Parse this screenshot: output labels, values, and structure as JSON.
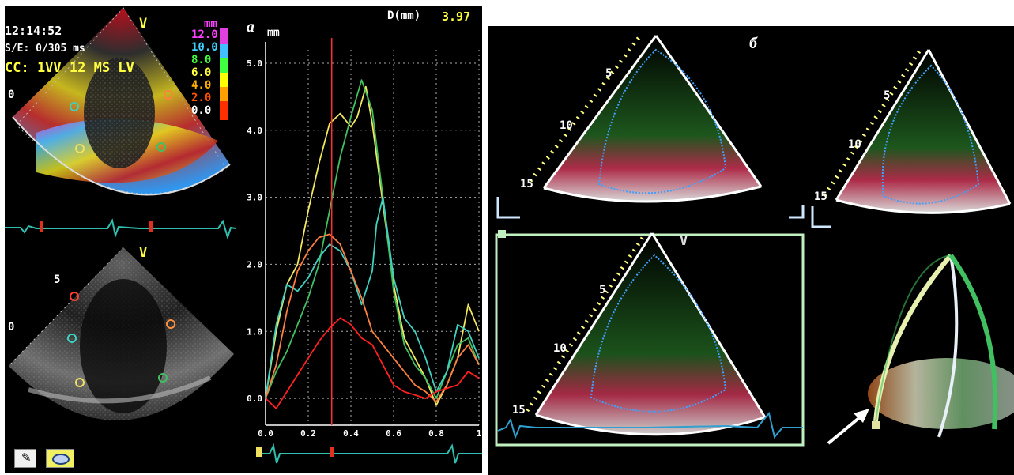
{
  "panel_a": {
    "label": "а",
    "time": "12:14:52",
    "sweep": "S/E: 0/305 ms",
    "mode": "CC: 1VV 12 MS LV",
    "marker_v_top": "V",
    "marker_v_bottom": "V",
    "depth_top": "0",
    "depth_bottom_5": "5",
    "depth_bottom_0": "0",
    "scale_unit": "mm",
    "scale_values": [
      "12.0",
      "10.0",
      "8.0",
      "6.0",
      "4.0",
      "2.0",
      "0.0"
    ],
    "scale_colors": [
      "#e040e0",
      "#40c0ff",
      "#40ff40",
      "#ffff00",
      "#ffa000",
      "#ff3000"
    ],
    "readout_label": "D(mm)",
    "readout_value": "3.97",
    "icons": [
      "pen-icon",
      "ellipse-icon"
    ]
  },
  "panel_b": {
    "label": "б",
    "depth_labels": [
      "5",
      "10",
      "15"
    ],
    "marker_v": "V"
  },
  "chart_data": {
    "type": "line",
    "ylabel": "mm",
    "xlim": [
      0,
      1.0
    ],
    "ylim": [
      -0.4,
      5.2
    ],
    "x_ticks": [
      "0.0",
      "0.2",
      "0.4",
      "0.6",
      "0.8",
      "1"
    ],
    "y_ticks": [
      "0.0",
      "1.0",
      "2.0",
      "3.0",
      "4.0",
      "5.0"
    ],
    "cursor_x": 0.31,
    "grid": true,
    "series": [
      {
        "color": "#f2e860",
        "x": [
          0,
          0.05,
          0.1,
          0.15,
          0.2,
          0.25,
          0.3,
          0.35,
          0.4,
          0.43,
          0.47,
          0.5,
          0.55,
          0.6,
          0.65,
          0.7,
          0.75,
          0.8,
          0.85,
          0.9,
          0.95,
          1.0
        ],
        "y": [
          0,
          1.0,
          1.7,
          2.0,
          2.8,
          3.5,
          4.1,
          4.25,
          4.05,
          4.2,
          4.65,
          4.1,
          2.9,
          1.7,
          0.9,
          0.6,
          0.3,
          -0.1,
          0.2,
          0.6,
          1.4,
          1.0
        ]
      },
      {
        "color": "#40c060",
        "x": [
          0,
          0.05,
          0.1,
          0.15,
          0.2,
          0.25,
          0.3,
          0.35,
          0.4,
          0.45,
          0.5,
          0.55,
          0.6,
          0.65,
          0.7,
          0.75,
          0.8,
          0.85,
          0.9,
          0.95,
          1.0
        ],
        "y": [
          0,
          0.4,
          0.7,
          1.1,
          1.5,
          2.0,
          2.8,
          3.6,
          4.2,
          4.75,
          4.3,
          3.0,
          1.6,
          0.8,
          0.5,
          0.3,
          0.0,
          0.4,
          0.8,
          0.9,
          0.5
        ]
      },
      {
        "color": "#40d0c0",
        "x": [
          0,
          0.05,
          0.1,
          0.15,
          0.2,
          0.25,
          0.3,
          0.35,
          0.4,
          0.45,
          0.5,
          0.52,
          0.55,
          0.6,
          0.65,
          0.7,
          0.75,
          0.8,
          0.85,
          0.9,
          0.95,
          1.0
        ],
        "y": [
          0,
          1.1,
          1.7,
          1.6,
          1.8,
          2.1,
          2.3,
          2.2,
          1.9,
          1.4,
          1.9,
          2.6,
          3.0,
          1.8,
          1.2,
          1.0,
          0.6,
          0.1,
          0.4,
          1.1,
          1.0,
          0.6
        ]
      },
      {
        "color": "#ff8040",
        "x": [
          0,
          0.05,
          0.1,
          0.15,
          0.2,
          0.25,
          0.3,
          0.35,
          0.4,
          0.45,
          0.5,
          0.55,
          0.6,
          0.65,
          0.7,
          0.75,
          0.8,
          0.85,
          0.9,
          0.95,
          1.0
        ],
        "y": [
          0,
          0.5,
          1.3,
          1.9,
          2.2,
          2.4,
          2.45,
          2.3,
          1.9,
          1.5,
          1.0,
          0.8,
          0.6,
          0.4,
          0.2,
          0.1,
          -0.05,
          0.2,
          0.6,
          0.8,
          0.5
        ]
      },
      {
        "color": "#ff2020",
        "x": [
          0,
          0.05,
          0.1,
          0.15,
          0.2,
          0.25,
          0.3,
          0.35,
          0.4,
          0.45,
          0.5,
          0.55,
          0.6,
          0.65,
          0.7,
          0.75,
          0.8,
          0.85,
          0.9,
          0.95,
          1.0
        ],
        "y": [
          0,
          -0.15,
          0.1,
          0.35,
          0.6,
          0.85,
          1.05,
          1.2,
          1.1,
          0.9,
          0.8,
          0.5,
          0.2,
          0.1,
          0.05,
          0.0,
          0.1,
          0.15,
          0.2,
          0.4,
          0.3
        ]
      }
    ]
  }
}
